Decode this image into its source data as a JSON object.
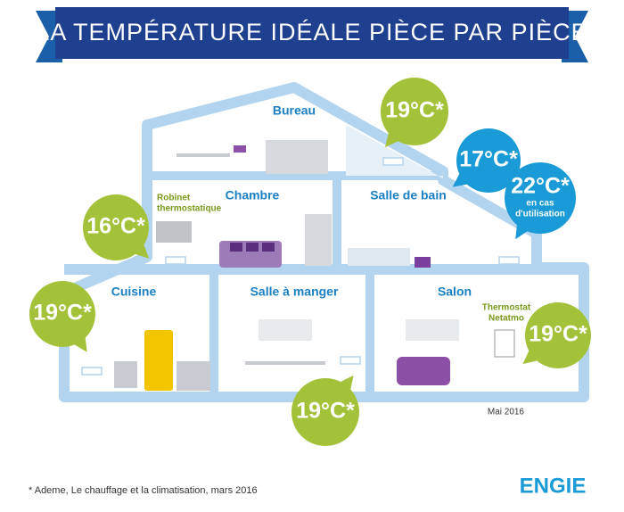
{
  "title": "LA TEMPÉRATURE IDÉALE PIÈCE PAR PIÈCE",
  "rooms": [
    {
      "name": "Bureau",
      "temperature": "19°C*"
    },
    {
      "name": "Chambre",
      "temperature": "16°C*"
    },
    {
      "name": "Salle de bain",
      "temperature": "17°C*",
      "temperature_in_use": "22°C*",
      "in_use_note": [
        "en cas",
        "d'utilisation"
      ]
    },
    {
      "name": "Cuisine",
      "temperature": "19°C*"
    },
    {
      "name": "Salle à manger",
      "temperature": "19°C*"
    },
    {
      "name": "Salon",
      "temperature": "19°C*"
    }
  ],
  "labels": {
    "radiator_valve": [
      "Robinet",
      "thermostatique"
    ],
    "thermostat": [
      "Thermostat",
      "Netatmo"
    ]
  },
  "date": "Mai 2016",
  "footnote": "* Ademe, Le chauffage et la climatisation, mars 2016",
  "logo": "ENGIE"
}
